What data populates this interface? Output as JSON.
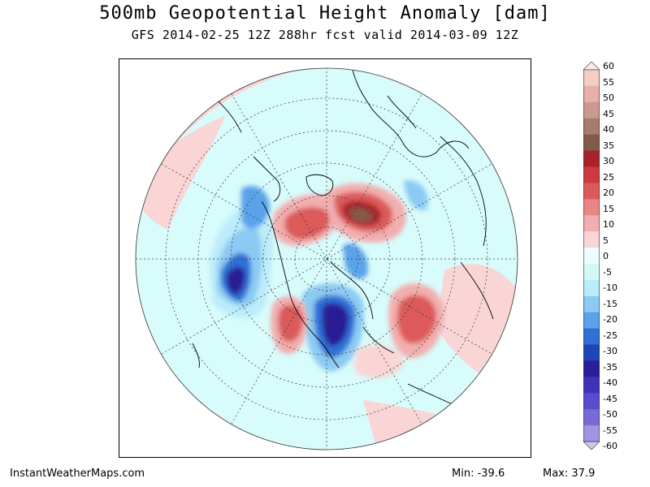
{
  "header": {
    "title": "500mb Geopotential Height Anomaly [dam]",
    "subtitle": "GFS 2014-02-25 12Z 288hr fcst valid 2014-03-09 12Z"
  },
  "legend": {
    "labels": [
      "60",
      "55",
      "50",
      "45",
      "40",
      "35",
      "30",
      "25",
      "20",
      "15",
      "10",
      "5",
      "0",
      "-5",
      "-10",
      "-15",
      "-20",
      "-25",
      "-30",
      "-35",
      "-40",
      "-45",
      "-50",
      "-55",
      "-60"
    ],
    "colors": [
      "#fbeaea",
      "#f3cdc6",
      "#e6b0a8",
      "#c99a8f",
      "#a57c6e",
      "#835a4a",
      "#a8222a",
      "#cb3a3c",
      "#dc5a5a",
      "#e98585",
      "#f2aeae",
      "#f9d5d5",
      "#e9ffff",
      "#d2f8f8",
      "#bcecfb",
      "#8ccaf3",
      "#5aa2ea",
      "#2f6fd6",
      "#1f45b8",
      "#2a1f96",
      "#3f33b8",
      "#5a4bd0",
      "#7a6ad8",
      "#a394e3",
      "#cfc4f3"
    ]
  },
  "footer": {
    "site": "InstantWeatherMaps.com",
    "min_label": "Min:",
    "min_value": "-39.6",
    "max_label": "Max:",
    "max_value": "37.9"
  }
}
